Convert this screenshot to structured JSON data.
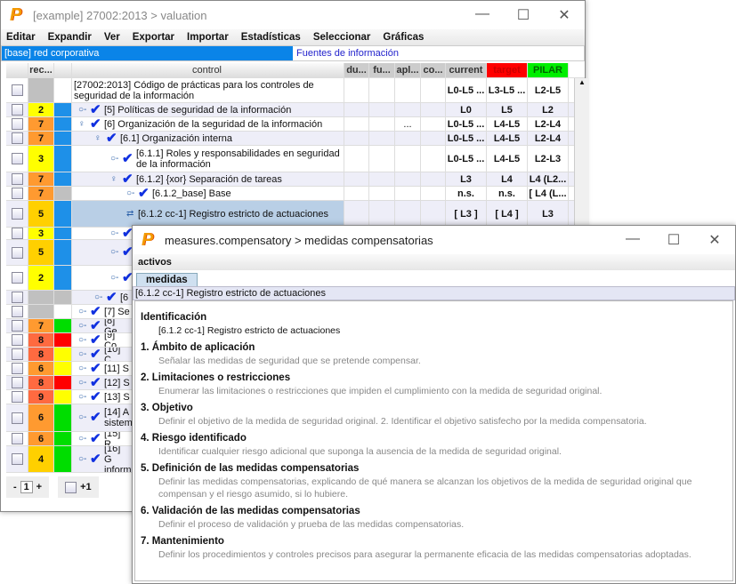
{
  "main": {
    "title": "[example] 27002:2013 > valuation",
    "menu": [
      "Editar",
      "Expandir",
      "Ver",
      "Exportar",
      "Importar",
      "Estadísticas",
      "Seleccionar",
      "Gráficas"
    ],
    "tabs": {
      "selected": "[base] red corporativa",
      "link": "Fuentes de información"
    },
    "columns": [
      "rec...",
      "",
      "control",
      "du...",
      "fu...",
      "apl...",
      "co...",
      "current",
      "target",
      "PILAR"
    ],
    "column_colors": {
      "target": "#ff0000",
      "PILAR": "#00ee00"
    },
    "rows": [
      {
        "rec": "",
        "rc": "#c0c0c0",
        "c2": "#ffffff",
        "lvl": 0,
        "icon": "",
        "text": "[27002:2013] Código de prácticas para los controles de seguridad de la información",
        "apl": "",
        "current": "L0-L5 ...",
        "target": "L3-L5 ...",
        "pilar": "L2-L5",
        "h": 28
      },
      {
        "rec": "2",
        "rc": "#ffff00",
        "c2": "#1e90e8",
        "lvl": 1,
        "icon": "key",
        "text": "[5] Políticas de seguridad de la información",
        "apl": "",
        "current": "L0",
        "target": "L5",
        "pilar": "L2",
        "h": 16
      },
      {
        "rec": "7",
        "rc": "#ff9a30",
        "c2": "#1e90e8",
        "lvl": 1,
        "icon": "node",
        "text": "[6] Organización de la seguridad de la información",
        "apl": "...",
        "current": "L0-L5 ...",
        "target": "L4-L5",
        "pilar": "L2-L4",
        "h": 16
      },
      {
        "rec": "7",
        "rc": "#ff9a30",
        "c2": "#1e90e8",
        "lvl": 2,
        "icon": "node",
        "text": "[6.1] Organización interna",
        "apl": "",
        "current": "L0-L5 ...",
        "target": "L4-L5",
        "pilar": "L2-L4",
        "h": 16
      },
      {
        "rec": "3",
        "rc": "#ffff00",
        "c2": "#1e90e8",
        "lvl": 3,
        "icon": "key",
        "text": "[6.1.1] Roles y responsabilidades en seguridad de la información",
        "apl": "",
        "current": "L0-L5 ...",
        "target": "L4-L5",
        "pilar": "L2-L3",
        "h": 30
      },
      {
        "rec": "7",
        "rc": "#ff9a30",
        "c2": "#1e90e8",
        "lvl": 3,
        "icon": "node",
        "text": "[6.1.2] {xor} Separación de tareas",
        "apl": "",
        "current": "L3",
        "target": "L4",
        "pilar": "L4 (L2...",
        "h": 16
      },
      {
        "rec": "7",
        "rc": "#ff9a30",
        "c2": "#c0c0c0",
        "lvl": 4,
        "icon": "key",
        "text": "[6.1.2_base] Base",
        "apl": "",
        "current": "n.s.",
        "target": "n.s.",
        "pilar": "[ L4 (L...",
        "h": 16
      },
      {
        "rec": "5",
        "rc": "#ffd000",
        "c2": "#1e90e8",
        "lvl": 4,
        "icon": "link",
        "text": "[6.1.2 cc-1] Registro estricto de actuaciones",
        "apl": "",
        "current": "[ L3 ]",
        "target": "[ L4 ]",
        "pilar": "L3",
        "h": 30,
        "sel": true
      },
      {
        "rec": "3",
        "rc": "#ffff00",
        "c2": "#1e90e8",
        "lvl": 3,
        "icon": "key",
        "text": "",
        "h": 14
      },
      {
        "rec": "5",
        "rc": "#ffd000",
        "c2": "#1e90e8",
        "lvl": 3,
        "icon": "key",
        "text": "",
        "h": 29
      },
      {
        "rec": "2",
        "rc": "#ffff00",
        "c2": "#1e90e8",
        "lvl": 3,
        "icon": "key",
        "text": "",
        "h": 28
      },
      {
        "rec": "",
        "rc": "#c0c0c0",
        "c2": "#c0c0c0",
        "lvl": 2,
        "icon": "key",
        "text": "[6",
        "h": 16
      },
      {
        "rec": "",
        "rc": "#c0c0c0",
        "c2": "#ffffff",
        "lvl": 0,
        "icon": "key",
        "text": "[7] Se",
        "h": 16
      },
      {
        "rec": "7",
        "rc": "#ff9a30",
        "c2": "#00dd00",
        "lvl": 0,
        "icon": "key",
        "text": "[8] Ge",
        "h": 16
      },
      {
        "rec": "8",
        "rc": "#ff6a40",
        "c2": "#ff0000",
        "lvl": 0,
        "icon": "key",
        "text": "[9] Co",
        "h": 16
      },
      {
        "rec": "8",
        "rc": "#ff6a40",
        "c2": "#ffff00",
        "lvl": 0,
        "icon": "key",
        "text": "[10] C",
        "h": 16
      },
      {
        "rec": "6",
        "rc": "#ff9a30",
        "c2": "#ffff00",
        "lvl": 0,
        "icon": "key",
        "text": "[11] S",
        "h": 16
      },
      {
        "rec": "8",
        "rc": "#ff6a40",
        "c2": "#ff0000",
        "lvl": 0,
        "icon": "key",
        "text": "[12] S",
        "h": 16
      },
      {
        "rec": "9",
        "rc": "#ff6a40",
        "c2": "#ffff00",
        "lvl": 0,
        "icon": "key",
        "text": "[13] S",
        "h": 16
      },
      {
        "rec": "6",
        "rc": "#ff9a30",
        "c2": "#00dd00",
        "lvl": 0,
        "icon": "key",
        "text": "[14] A sistem",
        "h": 31
      },
      {
        "rec": "6",
        "rc": "#ff9a30",
        "c2": "#00dd00",
        "lvl": 0,
        "icon": "key",
        "text": "[15] R",
        "h": 16
      },
      {
        "rec": "4",
        "rc": "#ffd000",
        "c2": "#00dd00",
        "lvl": 0,
        "icon": "key",
        "text": "[16] G inform",
        "h": 30
      }
    ],
    "bottom": {
      "minus": "-",
      "value": "1",
      "plus": "+",
      "plus_one": "+1"
    }
  },
  "secondary": {
    "title": "measures.compensatory > medidas compensatorias",
    "menu": "activos",
    "tab": "medidas",
    "header": "[6.1.2 cc-1] Registro estricto de actuaciones",
    "sections": [
      {
        "heading": "Identificación",
        "text": "[6.1.2 cc-1] Registro estricto de actuaciones",
        "dark": true
      },
      {
        "heading": "1. Ámbito de aplicación",
        "text": "Señalar las medidas de seguridad que se pretende compensar."
      },
      {
        "heading": "2. Limitaciones o restricciones",
        "text": "Enumerar las limitaciones o restricciones que impiden el cumplimiento con la medida de seguridad original."
      },
      {
        "heading": "3. Objetivo",
        "text": "Definir el objetivo de la medida de seguridad original. 2. Identificar el objetivo satisfecho por la medida compensatoria."
      },
      {
        "heading": "4. Riesgo identificado",
        "text": "Identificar cualquier riesgo adicional que suponga la ausencia de la medida de seguridad original."
      },
      {
        "heading": "5. Definición de las medidas compensatorias",
        "text": "Definir las medidas compensatorias, explicando de qué manera se alcanzan los objetivos de la medida de seguridad original que compensan y el riesgo asumido, si lo hubiere."
      },
      {
        "heading": "6. Validación de las medidas compensatorias",
        "text": "Definir el proceso de validación y prueba de las medidas compensatorias."
      },
      {
        "heading": "7. Mantenimiento",
        "text": "Definir los procedimientos y controles precisos para asegurar la permanente eficacia de las medidas compensatorias adoptadas."
      }
    ]
  }
}
